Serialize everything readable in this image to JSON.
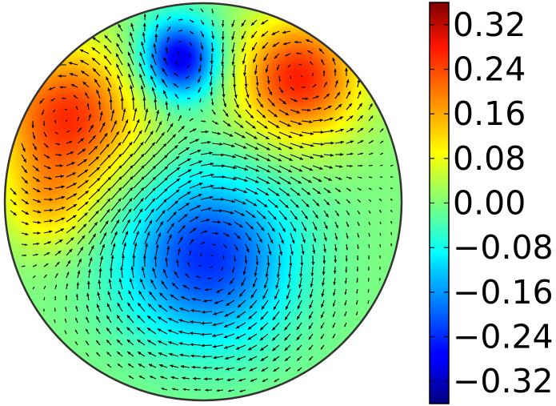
{
  "chart_data": {
    "type": "heatmap",
    "title": "",
    "xlabel": "",
    "ylabel": "",
    "domain_shape": "circle",
    "colormap": "jet",
    "has_quiver_overlay": true,
    "color_range": [
      -0.36,
      0.36
    ],
    "colorbar": {
      "ticks": [
        0.32,
        0.24,
        0.16,
        0.08,
        0.0,
        -0.08,
        -0.16,
        -0.24,
        -0.32
      ],
      "tick_labels": [
        "0.32",
        "0.24",
        "0.16",
        "0.08",
        "0.00",
        "−0.08",
        "−0.16",
        "−0.24",
        "−0.32"
      ]
    },
    "features": [
      {
        "kind": "extremum",
        "sign": "positive",
        "value": 0.24,
        "x": -0.68,
        "y": 0.42
      },
      {
        "kind": "extremum",
        "sign": "positive",
        "value": 0.25,
        "x": 0.48,
        "y": 0.62
      },
      {
        "kind": "extremum",
        "sign": "negative",
        "value": -0.3,
        "x": -0.12,
        "y": 0.72
      },
      {
        "kind": "extremum",
        "sign": "negative",
        "value": -0.24,
        "x": 0.02,
        "y": -0.28
      },
      {
        "kind": "extremum",
        "sign": "positive",
        "value": 0.1,
        "x": -0.78,
        "y": -0.02
      }
    ]
  }
}
